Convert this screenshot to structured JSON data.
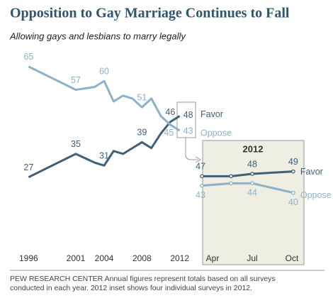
{
  "chart_data": [
    {
      "type": "line",
      "title": "Opposition to Gay Marriage Continues to Fall",
      "subtitle": "Allowing gays and lesbians to marry legally",
      "x": [
        1996,
        2001,
        2003,
        2004,
        2005,
        2006,
        2007,
        2008,
        2009,
        2010,
        2011,
        2012
      ],
      "series": [
        {
          "name": "Favor",
          "color": "#3e6179",
          "values": [
            27,
            35,
            32,
            31,
            36,
            35,
            37,
            39,
            37,
            42,
            46,
            48
          ],
          "value_labels": [
            "27",
            "35",
            null,
            "31",
            null,
            null,
            null,
            "39",
            null,
            null,
            "46",
            "48"
          ]
        },
        {
          "name": "Oppose",
          "color": "#8eb1ca",
          "values": [
            65,
            57,
            58,
            60,
            53,
            55,
            54,
            51,
            54,
            48,
            45,
            43
          ],
          "value_labels": [
            "65",
            "57",
            null,
            "60",
            null,
            null,
            null,
            "51",
            null,
            null,
            "45",
            "43"
          ]
        }
      ],
      "xlim": [
        1995,
        2013
      ],
      "xticks": [
        1996,
        2001,
        2004,
        2008,
        2012
      ],
      "ylim": [
        5,
        72
      ],
      "note": [
        "PEW RESEARCH CENTER Annual figures represent totals based on all surveys",
        "conducted in each year. 2012 inset shows four individual surveys in 2012."
      ]
    },
    {
      "type": "line",
      "title": "2012",
      "x": [
        3.2,
        5.4,
        7,
        10.1
      ],
      "series": [
        {
          "name": "Favor",
          "color": "#3e6179",
          "values": [
            47,
            47,
            48,
            49
          ],
          "value_labels": [
            "47",
            null,
            "48",
            "49"
          ]
        },
        {
          "name": "Oppose",
          "color": "#8eb1ca",
          "values": [
            43,
            44,
            44,
            40
          ],
          "value_labels": [
            "43",
            null,
            "44",
            "40"
          ]
        }
      ],
      "xlim": [
        2.5,
        11.5
      ],
      "xticks": [
        {
          "value": 4,
          "label": "Apr"
        },
        {
          "value": 7,
          "label": "Jul"
        },
        {
          "value": 10,
          "label": "Oct"
        }
      ],
      "ylim": [
        30,
        60
      ]
    }
  ]
}
